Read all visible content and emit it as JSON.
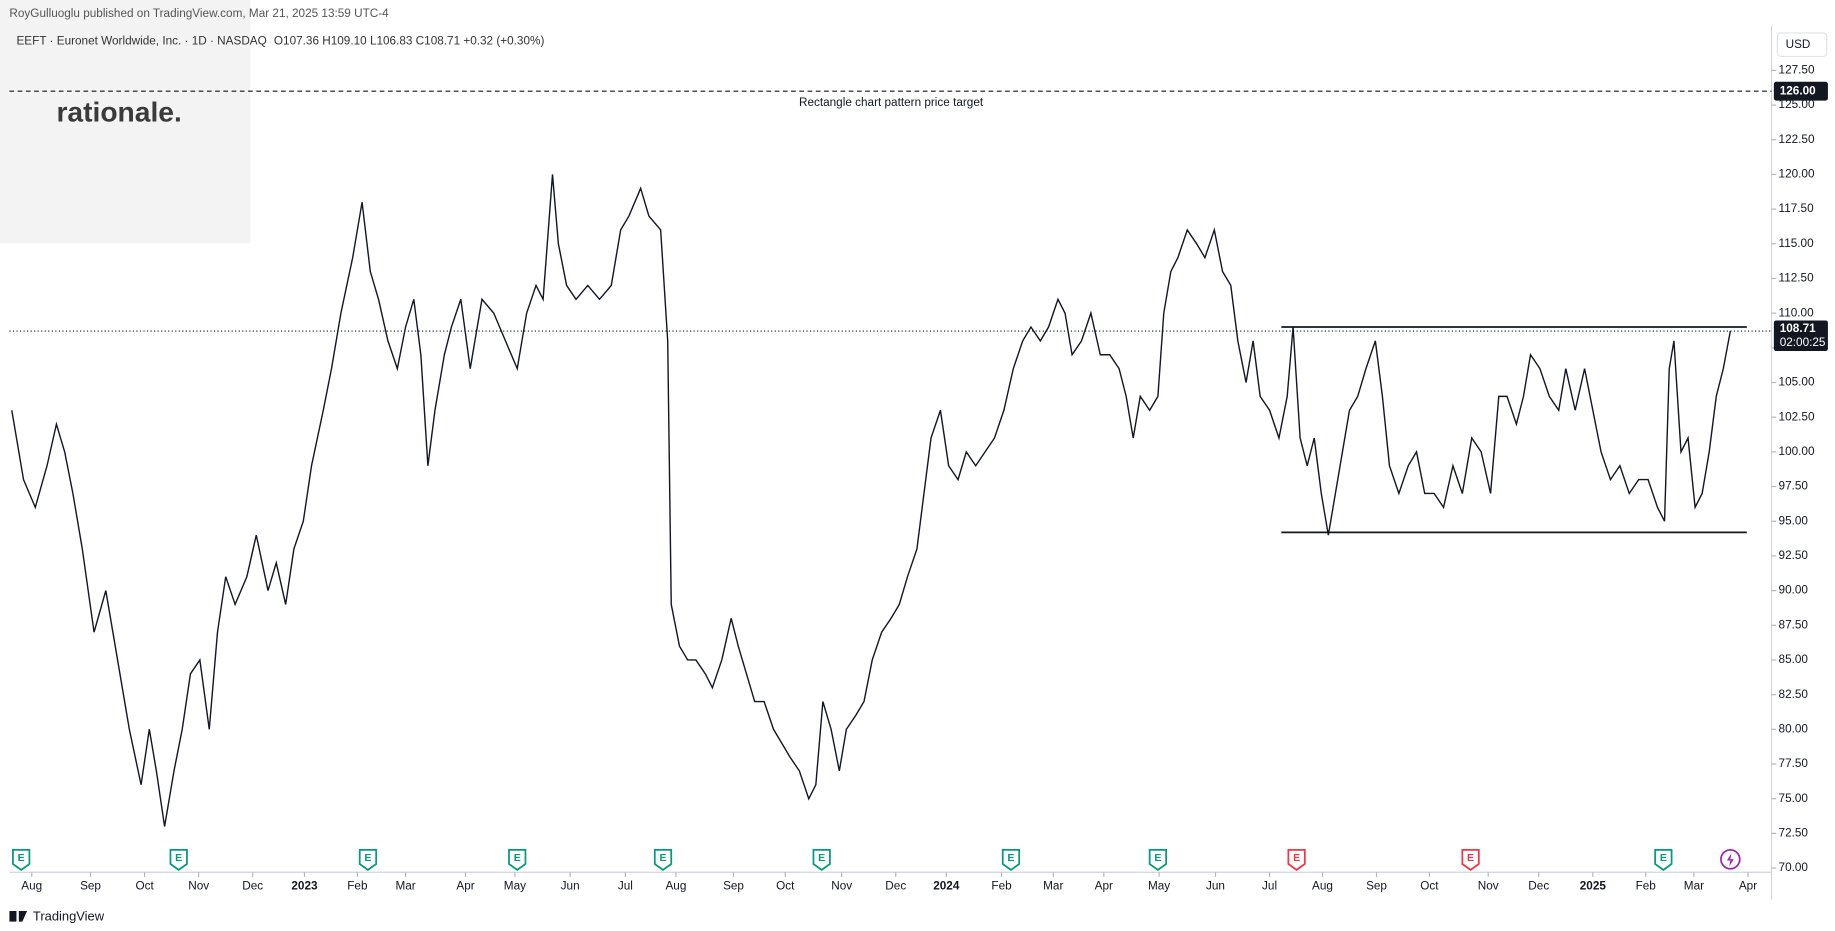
{
  "header": {
    "publisher": "RoyGulluoglu published on TradingView.com, Mar 21, 2025 13:59 UTC-4",
    "symbol": "EEFT · Euronet Worldwide, Inc. · 1D · NASDAQ",
    "ohlc": "O107.36  H109.10  L106.83  C108.71  +0.32 (+0.30%)",
    "watermark": "rationale.",
    "footer": "TradingView"
  },
  "chart_data": {
    "type": "line",
    "currency": "USD",
    "x": [
      1.0,
      2.0,
      3.0,
      4.0,
      4.8,
      5.5,
      6.2,
      7.0,
      8.0,
      9.0,
      10.0,
      11.0,
      12.0,
      12.7,
      13.3,
      14.0,
      14.8,
      15.5,
      16.2,
      17.0,
      17.8,
      18.5,
      19.2,
      20.0,
      21.0,
      21.8,
      22.8,
      23.5,
      24.3,
      25.0,
      25.8,
      26.5,
      27.5,
      28.2,
      29.0,
      30.0,
      30.8,
      31.5,
      32.2,
      33.0,
      33.8,
      34.5,
      35.2,
      35.8,
      36.4,
      37.0,
      37.8,
      38.4,
      39.2,
      40.0,
      41.0,
      42.0,
      43.0,
      44.0,
      44.8,
      45.6,
      46.2,
      47.0,
      47.5,
      48.2,
      49.0,
      50.0,
      51.0,
      52.0,
      52.8,
      53.5,
      54.5,
      55.2,
      56.2,
      56.8,
      57.1,
      57.8,
      58.5,
      59.2,
      60.0,
      60.6,
      61.4,
      62.2,
      62.8,
      63.5,
      64.2,
      65.0,
      65.8,
      66.5,
      67.2,
      68.0,
      68.8,
      69.4,
      70.0,
      70.7,
      71.4,
      72.0,
      72.8,
      73.5,
      74.2,
      75.0,
      75.8,
      76.5,
      77.2,
      78.0,
      78.6,
      79.2,
      80.0,
      80.7,
      81.5,
      82.2,
      83.0,
      83.8,
      84.6,
      85.4,
      86.2,
      87.0,
      87.7,
      88.5,
      89.2,
      90.0,
      90.6,
      91.2,
      92.0,
      92.8,
      93.6,
      94.4,
      95.2,
      95.8,
      96.4,
      97.0,
      97.8,
      98.5,
      99.0,
      99.6,
      100.2,
      101.0,
      101.8,
      102.5,
      103.3,
      104.0,
      104.7,
      105.3,
      106.0,
      106.6,
      107.2,
      108.0,
      108.8,
      109.5,
      110.0,
      110.6,
      111.2,
      111.8,
      112.4,
      113.0,
      113.6,
      114.2,
      114.8,
      115.5,
      116.2,
      117.0,
      117.6,
      118.2,
      119.0,
      119.8,
      120.5,
      121.2,
      122.0,
      122.8,
      123.6,
      124.4,
      125.2,
      126.0,
      126.8,
      127.5,
      128.2,
      129.0,
      129.6,
      130.2,
      131.0,
      131.8,
      132.6,
      133.2,
      134.0,
      134.8,
      135.5,
      136.2,
      137.0,
      137.8,
      138.6,
      139.4,
      140.2,
      141.0,
      141.6,
      142.0,
      142.4,
      143.0,
      143.6,
      144.2,
      144.8,
      145.4,
      146.0,
      146.6,
      147.2
    ],
    "series": [
      {
        "name": "EEFT",
        "color": "#131722",
        "values": [
          103,
          98,
          96,
          99,
          102,
          100,
          97,
          93,
          87,
          90,
          85,
          80,
          76,
          80,
          77,
          73,
          77,
          80,
          84,
          85,
          80,
          87,
          91,
          89,
          91,
          94,
          90,
          92,
          89,
          93,
          95,
          99,
          103,
          106,
          110,
          114,
          118,
          113,
          111,
          108,
          106,
          109,
          111,
          107,
          99,
          103,
          107,
          109,
          111,
          106,
          111,
          110,
          108,
          106,
          110,
          112,
          111,
          120,
          115,
          112,
          111,
          112,
          111,
          112,
          116,
          117,
          119,
          117,
          116,
          108,
          89,
          86,
          85,
          85,
          84,
          83,
          85,
          88,
          86,
          84,
          82,
          82,
          80,
          79,
          78,
          77,
          75,
          76,
          82,
          80,
          77,
          80,
          81,
          82,
          85,
          87,
          88,
          89,
          91,
          93,
          97,
          101,
          103,
          99,
          98,
          100,
          99,
          100,
          101,
          103,
          106,
          108,
          109,
          108,
          109,
          111,
          110,
          107,
          108,
          110,
          107,
          107,
          106,
          104,
          101,
          104,
          103,
          104,
          110,
          113,
          114,
          116,
          115,
          114,
          116,
          113,
          112,
          108,
          105,
          108,
          104,
          103,
          101,
          104,
          109,
          101,
          99,
          101,
          97,
          94,
          97,
          100,
          103,
          104,
          106,
          108,
          104,
          99,
          97,
          99,
          100,
          97,
          97,
          96,
          99,
          97,
          101,
          100,
          97,
          104,
          104,
          102,
          104,
          107,
          106,
          104,
          103,
          106,
          103,
          106,
          103,
          100,
          98,
          99,
          97,
          98,
          98,
          96,
          95,
          106,
          108,
          100,
          101,
          96,
          97,
          100,
          104,
          106,
          108.71
        ]
      }
    ],
    "xlim": [
      0.8,
      150.7
    ],
    "xticks": [
      {
        "value": 2.7,
        "label": "Aug"
      },
      {
        "value": 7.7,
        "label": "Sep"
      },
      {
        "value": 12.3,
        "label": "Oct"
      },
      {
        "value": 16.9,
        "label": "Nov"
      },
      {
        "value": 21.5,
        "label": "Dec"
      },
      {
        "value": 25.9,
        "label": "2023"
      },
      {
        "value": 30.4,
        "label": "Feb"
      },
      {
        "value": 34.5,
        "label": "Mar"
      },
      {
        "value": 39.6,
        "label": "Apr"
      },
      {
        "value": 43.8,
        "label": "May"
      },
      {
        "value": 48.5,
        "label": "Jun"
      },
      {
        "value": 53.2,
        "label": "Jul"
      },
      {
        "value": 57.5,
        "label": "Aug"
      },
      {
        "value": 62.4,
        "label": "Sep"
      },
      {
        "value": 66.8,
        "label": "Oct"
      },
      {
        "value": 71.6,
        "label": "Nov"
      },
      {
        "value": 76.2,
        "label": "Dec"
      },
      {
        "value": 80.5,
        "label": "2024"
      },
      {
        "value": 85.2,
        "label": "Feb"
      },
      {
        "value": 89.6,
        "label": "Mar"
      },
      {
        "value": 93.9,
        "label": "Apr"
      },
      {
        "value": 98.6,
        "label": "May"
      },
      {
        "value": 103.4,
        "label": "Jun"
      },
      {
        "value": 108.0,
        "label": "Jul"
      },
      {
        "value": 112.5,
        "label": "Aug"
      },
      {
        "value": 117.1,
        "label": "Sep"
      },
      {
        "value": 121.6,
        "label": "Oct"
      },
      {
        "value": 126.6,
        "label": "Nov"
      },
      {
        "value": 130.9,
        "label": "Dec"
      },
      {
        "value": 135.5,
        "label": "2025"
      },
      {
        "value": 140.0,
        "label": "Feb"
      },
      {
        "value": 144.1,
        "label": "Mar"
      },
      {
        "value": 148.7,
        "label": "Apr"
      }
    ],
    "ylim": [
      69.7,
      130.2
    ],
    "yticks": [
      {
        "value": 70,
        "label": "70.00"
      },
      {
        "value": 72.5,
        "label": "72.50"
      },
      {
        "value": 75,
        "label": "75.00"
      },
      {
        "value": 77.5,
        "label": "77.50"
      },
      {
        "value": 80,
        "label": "80.00"
      },
      {
        "value": 82.5,
        "label": "82.50"
      },
      {
        "value": 85,
        "label": "85.00"
      },
      {
        "value": 87.5,
        "label": "87.50"
      },
      {
        "value": 90,
        "label": "90.00"
      },
      {
        "value": 92.5,
        "label": "92.50"
      },
      {
        "value": 95,
        "label": "95.00"
      },
      {
        "value": 97.5,
        "label": "97.50"
      },
      {
        "value": 100,
        "label": "100.00"
      },
      {
        "value": 102.5,
        "label": "102.50"
      },
      {
        "value": 105,
        "label": "105.00"
      },
      {
        "value": 107.5,
        "label": "107.50"
      },
      {
        "value": 110,
        "label": "110.00"
      },
      {
        "value": 112.5,
        "label": "112.50"
      },
      {
        "value": 115,
        "label": "115.00"
      },
      {
        "value": 117.5,
        "label": "117.50"
      },
      {
        "value": 120,
        "label": "120.00"
      },
      {
        "value": 122.5,
        "label": "122.50"
      },
      {
        "value": 125,
        "label": "125.00"
      },
      {
        "value": 127.5,
        "label": "127.50"
      }
    ],
    "target": {
      "value": 126,
      "label": "126.00",
      "text": "Rectangle chart pattern price target"
    },
    "rectangle": {
      "top": 109.0,
      "bottom": 94.2,
      "x_start": 109.0,
      "x_end": 148.6
    },
    "last_price": {
      "value": 108.71,
      "label": "108.71",
      "countdown": "02:00:25"
    },
    "earnings": [
      {
        "x": 1.8,
        "label": "E",
        "color": "#089981"
      },
      {
        "x": 15.2,
        "label": "E",
        "color": "#089981"
      },
      {
        "x": 31.3,
        "label": "E",
        "color": "#089981"
      },
      {
        "x": 44.0,
        "label": "E",
        "color": "#089981"
      },
      {
        "x": 56.4,
        "label": "E",
        "color": "#089981"
      },
      {
        "x": 69.9,
        "label": "E",
        "color": "#089981"
      },
      {
        "x": 86.0,
        "label": "E",
        "color": "#089981"
      },
      {
        "x": 98.5,
        "label": "E",
        "color": "#089981"
      },
      {
        "x": 110.3,
        "label": "E",
        "color": "#f23645"
      },
      {
        "x": 125.1,
        "label": "E",
        "color": "#f23645"
      },
      {
        "x": 141.5,
        "label": "E",
        "color": "#089981"
      }
    ]
  }
}
